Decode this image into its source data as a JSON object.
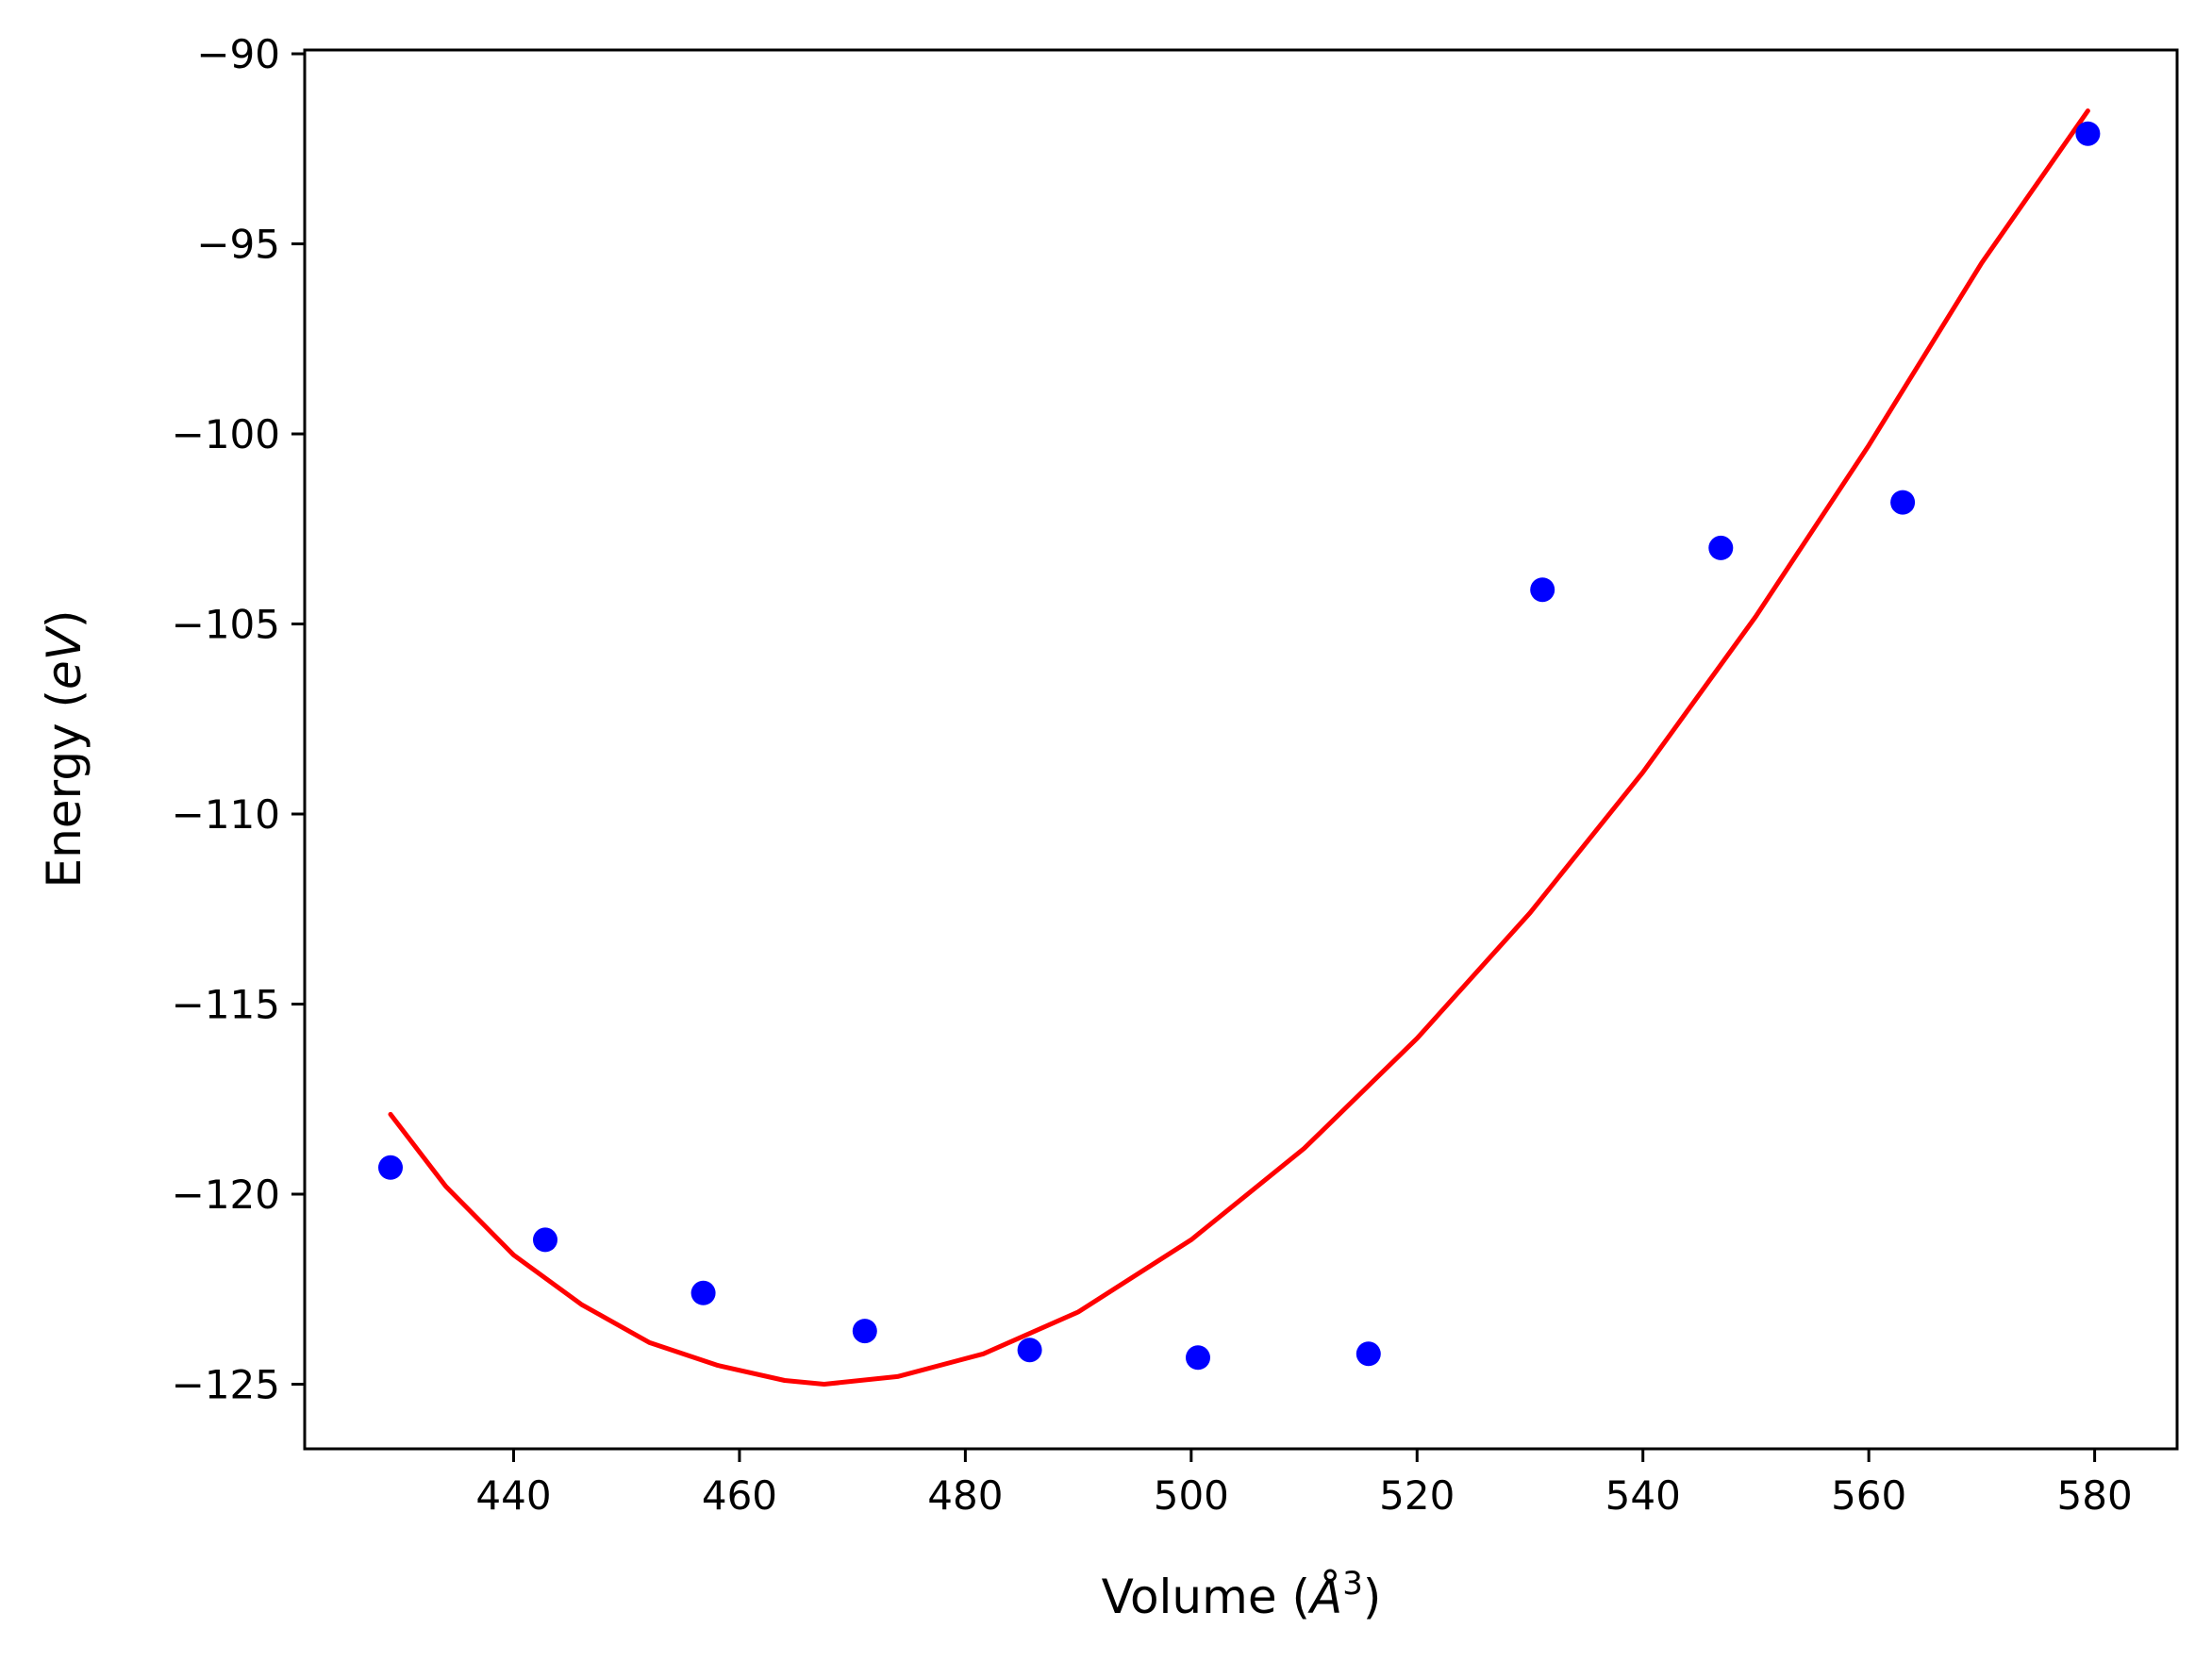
{
  "chart_data": {
    "type": "scatter",
    "title": "",
    "xlabel": {
      "prefix": "Volume (",
      "unit_symbol": "Å",
      "exponent": "3",
      "suffix": ")"
    },
    "ylabel": {
      "prefix": "Energy (",
      "unit_italic": "eV",
      "suffix": ")"
    },
    "xlim": [
      421.5,
      587.3
    ],
    "ylim": [
      -126.7,
      -89.9
    ],
    "xticks": [
      440,
      460,
      480,
      500,
      520,
      540,
      560,
      580
    ],
    "yticks": [
      -90,
      -95,
      -100,
      -105,
      -110,
      -115,
      -120,
      -125
    ],
    "xtick_labels": [
      "440",
      "460",
      "480",
      "500",
      "520",
      "540",
      "560",
      "580"
    ],
    "ytick_labels": [
      "−90",
      "−95",
      "−100",
      "−105",
      "−110",
      "−115",
      "−120",
      "−125"
    ],
    "grid": false,
    "series": [
      {
        "kind": "points",
        "color": "#0000ff",
        "x": [
          429.1,
          442.8,
          456.8,
          471.1,
          485.7,
          500.6,
          515.7,
          531.1,
          546.9,
          563.0,
          579.4
        ],
        "y": [
          -119.3,
          -121.2,
          -122.6,
          -123.6,
          -124.1,
          -124.3,
          -124.2,
          -104.1,
          -103.0,
          -101.8,
          -92.1
        ]
      },
      {
        "kind": "fit",
        "color": "#ff0000",
        "x": [
          429.1,
          434.0,
          440.0,
          446.0,
          452.0,
          458.0,
          464.0,
          467.5,
          474.0,
          481.6,
          490.0,
          500.0,
          510.0,
          520.0,
          530.0,
          540.0,
          550.0,
          560.0,
          570.0,
          579.4
        ],
        "y": [
          -117.9,
          -119.8,
          -121.6,
          -122.9,
          -123.9,
          -124.5,
          -124.9,
          -125.0,
          -124.8,
          -124.2,
          -123.1,
          -121.2,
          -118.8,
          -115.9,
          -112.6,
          -108.9,
          -104.8,
          -100.3,
          -95.5,
          -91.5
        ]
      }
    ]
  }
}
